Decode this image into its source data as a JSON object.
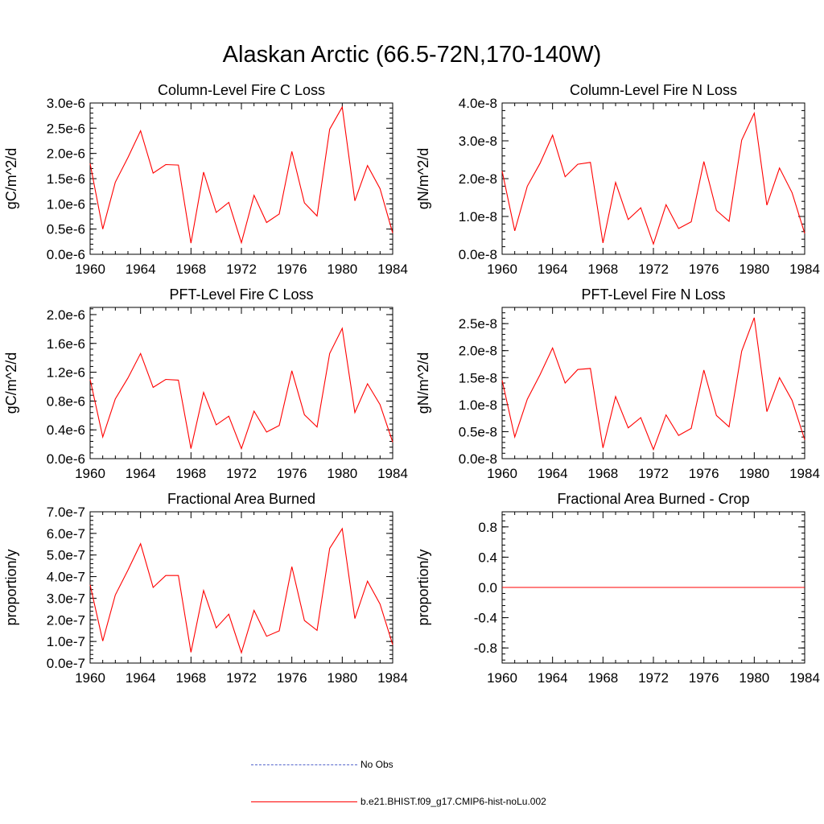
{
  "title": "Alaskan Arctic (66.5-72N,170-140W)",
  "legend": {
    "items": [
      {
        "label": "No Obs",
        "color": "#5566cc",
        "style": "dashed"
      },
      {
        "label": "b.e21.BHIST.f09_g17.CMIP6-hist-noLu.002",
        "color": "#ff0000",
        "style": "solid"
      }
    ]
  },
  "chart_data": [
    {
      "type": "line",
      "title": "Column-Level Fire C Loss",
      "ylabel": "gC/m^2/d",
      "xlim": [
        1960,
        1984
      ],
      "ylim": [
        0,
        3e-06
      ],
      "x_ticks": [
        1960,
        1964,
        1968,
        1972,
        1976,
        1980,
        1984
      ],
      "y_ticks": [
        0,
        5e-07,
        1e-06,
        1.5e-06,
        2e-06,
        2.5e-06,
        3e-06
      ],
      "y_tick_labels": [
        "0.0e-6",
        "0.5e-6",
        "1.0e-6",
        "1.5e-6",
        "2.0e-6",
        "2.5e-6",
        "3.0e-6"
      ],
      "x": [
        1960,
        1961,
        1962,
        1963,
        1964,
        1965,
        1966,
        1967,
        1968,
        1969,
        1970,
        1971,
        1972,
        1973,
        1974,
        1975,
        1976,
        1977,
        1978,
        1979,
        1980,
        1981,
        1982,
        1983,
        1984
      ],
      "series": [
        {
          "color": "#ff0000",
          "values": [
            1.8e-06,
            5e-07,
            1.43e-06,
            1.92e-06,
            2.45e-06,
            1.61e-06,
            1.78e-06,
            1.77e-06,
            2.2e-07,
            1.63e-06,
            8.3e-07,
            1.03e-06,
            2.3e-07,
            1.17e-06,
            6.3e-07,
            8e-07,
            2.04e-06,
            1.02e-06,
            7.6e-07,
            2.48e-06,
            2.92e-06,
            1.06e-06,
            1.76e-06,
            1.3e-06,
            4.2e-07
          ]
        }
      ]
    },
    {
      "type": "line",
      "title": "Column-Level Fire N Loss",
      "ylabel": "gN/m^2/d",
      "xlim": [
        1960,
        1984
      ],
      "ylim": [
        0,
        4e-08
      ],
      "x_ticks": [
        1960,
        1964,
        1968,
        1972,
        1976,
        1980,
        1984
      ],
      "y_ticks": [
        0,
        1e-08,
        2e-08,
        3e-08,
        4e-08
      ],
      "y_tick_labels": [
        "0.0e-8",
        "1.0e-8",
        "2.0e-8",
        "3.0e-8",
        "4.0e-8"
      ],
      "x": [
        1960,
        1961,
        1962,
        1963,
        1964,
        1965,
        1966,
        1967,
        1968,
        1969,
        1970,
        1971,
        1972,
        1973,
        1974,
        1975,
        1976,
        1977,
        1978,
        1979,
        1980,
        1981,
        1982,
        1983,
        1984
      ],
      "series": [
        {
          "color": "#ff0000",
          "values": [
            2.2e-08,
            6.2e-09,
            1.8e-08,
            2.4e-08,
            3.15e-08,
            2.05e-08,
            2.38e-08,
            2.43e-08,
            3e-09,
            1.9e-08,
            9.2e-09,
            1.23e-08,
            2.7e-09,
            1.31e-08,
            6.8e-09,
            8.6e-09,
            2.45e-08,
            1.16e-08,
            8.7e-09,
            3.02e-08,
            3.73e-08,
            1.3e-08,
            2.28e-08,
            1.63e-08,
            5.5e-09
          ]
        }
      ]
    },
    {
      "type": "line",
      "title": "PFT-Level Fire C Loss",
      "ylabel": "gC/m^2/d",
      "xlim": [
        1960,
        1984
      ],
      "ylim": [
        0,
        2.1e-06
      ],
      "x_ticks": [
        1960,
        1964,
        1968,
        1972,
        1976,
        1980,
        1984
      ],
      "y_ticks": [
        0,
        4e-07,
        8e-07,
        1.2e-06,
        1.6e-06,
        2e-06
      ],
      "y_tick_labels": [
        "0.0e-6",
        "0.4e-6",
        "0.8e-6",
        "1.2e-6",
        "1.6e-6",
        "2.0e-6"
      ],
      "x": [
        1960,
        1961,
        1962,
        1963,
        1964,
        1965,
        1966,
        1967,
        1968,
        1969,
        1970,
        1971,
        1972,
        1973,
        1974,
        1975,
        1976,
        1977,
        1978,
        1979,
        1980,
        1981,
        1982,
        1983,
        1984
      ],
      "series": [
        {
          "color": "#ff0000",
          "values": [
            1.1e-06,
            3e-07,
            8.3e-07,
            1.12e-06,
            1.46e-06,
            9.9e-07,
            1.1e-06,
            1.09e-06,
            1.4e-07,
            9.2e-07,
            4.7e-07,
            5.9e-07,
            1.4e-07,
            6.6e-07,
            3.7e-07,
            4.6e-07,
            1.22e-06,
            6.1e-07,
            4.4e-07,
            1.46e-06,
            1.81e-06,
            6.4e-07,
            1.04e-06,
            7.5e-07,
            2.3e-07
          ]
        }
      ]
    },
    {
      "type": "line",
      "title": "PFT-Level Fire N Loss",
      "ylabel": "gN/m^2/d",
      "xlim": [
        1960,
        1984
      ],
      "ylim": [
        0,
        2.8e-08
      ],
      "x_ticks": [
        1960,
        1964,
        1968,
        1972,
        1976,
        1980,
        1984
      ],
      "y_ticks": [
        0,
        5e-09,
        1e-08,
        1.5e-08,
        2e-08,
        2.5e-08
      ],
      "y_tick_labels": [
        "0.0e-8",
        "0.5e-8",
        "1.0e-8",
        "1.5e-8",
        "2.0e-8",
        "2.5e-8"
      ],
      "x": [
        1960,
        1961,
        1962,
        1963,
        1964,
        1965,
        1966,
        1967,
        1968,
        1969,
        1970,
        1971,
        1972,
        1973,
        1974,
        1975,
        1976,
        1977,
        1978,
        1979,
        1980,
        1981,
        1982,
        1983,
        1984
      ],
      "series": [
        {
          "color": "#ff0000",
          "values": [
            1.45e-08,
            4e-09,
            1.1e-08,
            1.55e-08,
            2.05e-08,
            1.4e-08,
            1.65e-08,
            1.67e-08,
            2e-09,
            1.15e-08,
            5.7e-09,
            7.6e-09,
            1.7e-09,
            8.1e-09,
            4.3e-09,
            5.6e-09,
            1.64e-08,
            8e-09,
            5.9e-09,
            1.99e-08,
            2.61e-08,
            8.7e-09,
            1.5e-08,
            1.08e-08,
            3.5e-09
          ]
        }
      ]
    },
    {
      "type": "line",
      "title": "Fractional Area Burned",
      "ylabel": "proportion/y",
      "xlim": [
        1960,
        1984
      ],
      "ylim": [
        0,
        7e-07
      ],
      "x_ticks": [
        1960,
        1964,
        1968,
        1972,
        1976,
        1980,
        1984
      ],
      "y_ticks": [
        0,
        1e-07,
        2e-07,
        3e-07,
        4e-07,
        5e-07,
        6e-07,
        7e-07
      ],
      "y_tick_labels": [
        "0.0e-7",
        "1.0e-7",
        "2.0e-7",
        "3.0e-7",
        "4.0e-7",
        "5.0e-7",
        "6.0e-7",
        "7.0e-7"
      ],
      "x": [
        1960,
        1961,
        1962,
        1963,
        1964,
        1965,
        1966,
        1967,
        1968,
        1969,
        1970,
        1971,
        1972,
        1973,
        1974,
        1975,
        1976,
        1977,
        1978,
        1979,
        1980,
        1981,
        1982,
        1983,
        1984
      ],
      "series": [
        {
          "color": "#ff0000",
          "values": [
            3.62e-07,
            1.02e-07,
            3.15e-07,
            4.3e-07,
            5.52e-07,
            3.5e-07,
            4.05e-07,
            4.05e-07,
            5e-08,
            3.36e-07,
            1.63e-07,
            2.26e-07,
            4.8e-08,
            2.44e-07,
            1.24e-07,
            1.49e-07,
            4.46e-07,
            1.97e-07,
            1.51e-07,
            5.31e-07,
            6.22e-07,
            2.06e-07,
            3.79e-07,
            2.73e-07,
            8.5e-08
          ]
        }
      ]
    },
    {
      "type": "line",
      "title": "Fractional Area Burned - Crop",
      "ylabel": "proportion/y",
      "xlim": [
        1960,
        1984
      ],
      "ylim": [
        -1.0,
        1.0
      ],
      "x_ticks": [
        1960,
        1964,
        1968,
        1972,
        1976,
        1980,
        1984
      ],
      "y_ticks": [
        -0.8,
        -0.4,
        0.0,
        0.4,
        0.8
      ],
      "y_tick_labels": [
        "-0.8",
        "-0.4",
        "0.0",
        "0.4",
        "0.8"
      ],
      "x": [
        1960,
        1961,
        1962,
        1963,
        1964,
        1965,
        1966,
        1967,
        1968,
        1969,
        1970,
        1971,
        1972,
        1973,
        1974,
        1975,
        1976,
        1977,
        1978,
        1979,
        1980,
        1981,
        1982,
        1983,
        1984
      ],
      "series": [
        {
          "color": "#ff0000",
          "values": [
            0,
            0,
            0,
            0,
            0,
            0,
            0,
            0,
            0,
            0,
            0,
            0,
            0,
            0,
            0,
            0,
            0,
            0,
            0,
            0,
            0,
            0,
            0,
            0,
            0
          ]
        }
      ]
    }
  ]
}
